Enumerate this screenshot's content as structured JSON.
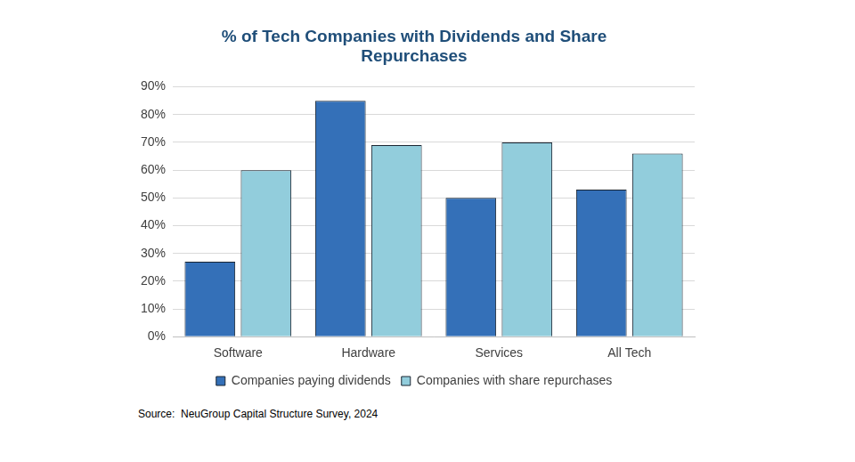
{
  "chart_data": {
    "type": "bar",
    "title": "% of Tech Companies with Dividends and Share Repurchases",
    "source": "Source:  NeuGroup Capital Structure Survey, 2024",
    "categories": [
      "Software",
      "Hardware",
      "Services",
      "All Tech"
    ],
    "series": [
      {
        "name": "Companies paying dividends",
        "color": "#3470b8",
        "values": [
          27,
          85,
          50,
          53
        ]
      },
      {
        "name": "Companies with share repurchases",
        "color": "#92cddc",
        "values": [
          60,
          69,
          70,
          66
        ]
      }
    ],
    "ylim": [
      0,
      90
    ],
    "yticks": [
      {
        "value": 0,
        "label": "0%"
      },
      {
        "value": 10,
        "label": "10%"
      },
      {
        "value": 20,
        "label": "20%"
      },
      {
        "value": 30,
        "label": "30%"
      },
      {
        "value": 40,
        "label": "40%"
      },
      {
        "value": 50,
        "label": "50%"
      },
      {
        "value": 60,
        "label": "60%"
      },
      {
        "value": 70,
        "label": "70%"
      },
      {
        "value": 80,
        "label": "80%"
      },
      {
        "value": 90,
        "label": "90%"
      }
    ],
    "grid": true,
    "legend": "bottom"
  }
}
